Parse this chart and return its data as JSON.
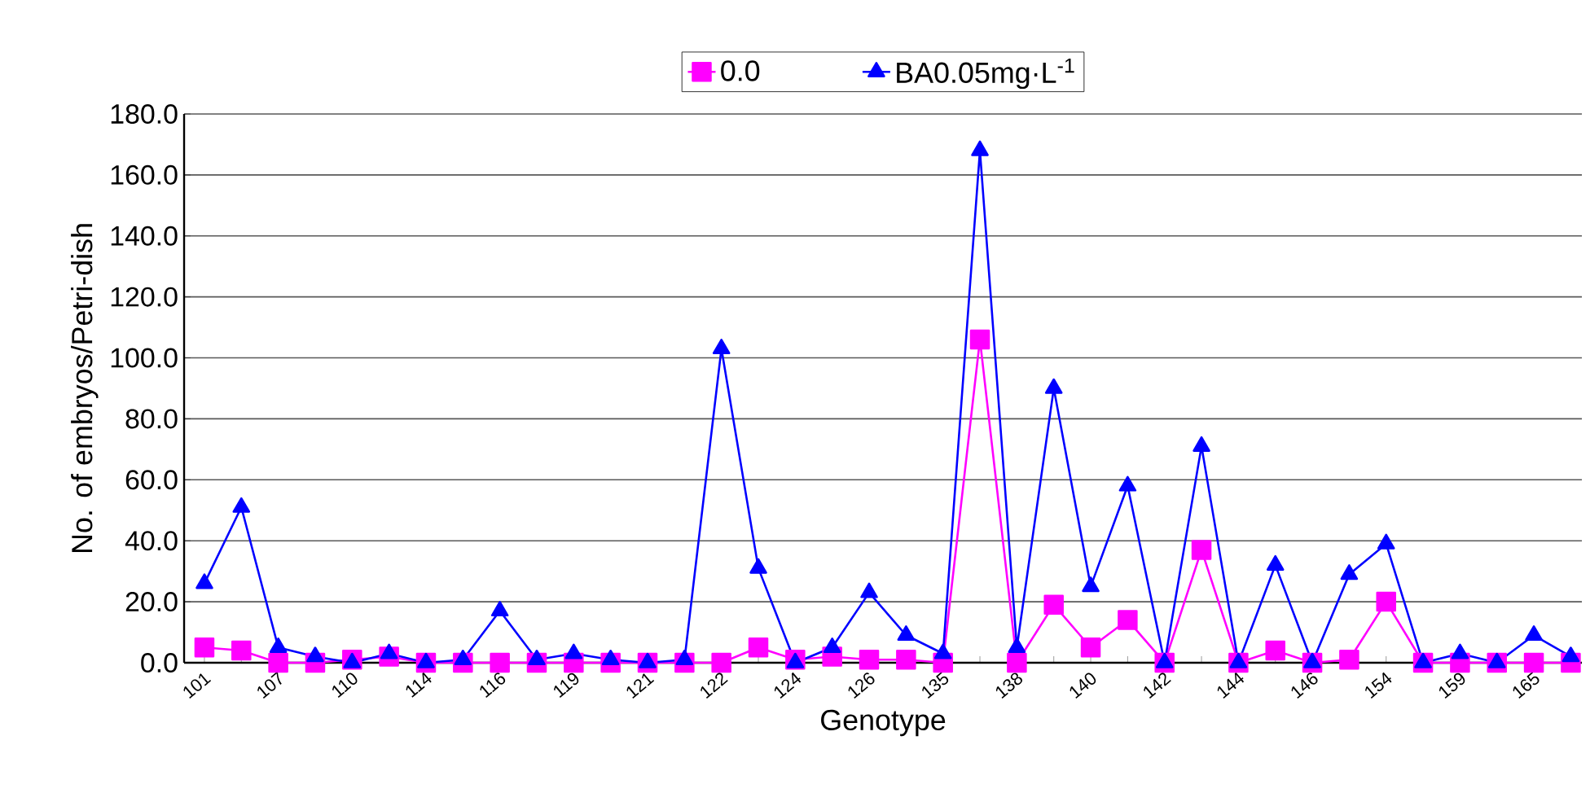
{
  "chart_data": {
    "type": "line",
    "xlabel": "Genotype",
    "ylabel": "No. of embryos/Petri-dish",
    "categories": [
      "101",
      null,
      "107",
      null,
      "110",
      null,
      "114",
      null,
      "116",
      null,
      "119",
      null,
      "121",
      null,
      "122",
      null,
      "124",
      null,
      "126",
      null,
      "135",
      null,
      "138",
      null,
      "140",
      null,
      "142",
      null,
      "144",
      null,
      "146",
      null,
      "154",
      null,
      "159",
      null,
      "165",
      null
    ],
    "series": [
      {
        "name": "0.0",
        "color": "#ff00ff",
        "marker": "square",
        "values": [
          5,
          4,
          0,
          0,
          1,
          2,
          0,
          0,
          0,
          0,
          0,
          0,
          0,
          0,
          0,
          5,
          1,
          2,
          1,
          1,
          0,
          106,
          0,
          19,
          5,
          14,
          0,
          37,
          0,
          4,
          0,
          1,
          20,
          0,
          0,
          0,
          0,
          0
        ]
      },
      {
        "name": "BA0.05mg·L$^{-1}$",
        "color": "#0000ff",
        "marker": "triangle",
        "values": [
          26,
          51,
          5,
          2,
          0,
          3,
          0,
          1,
          17,
          1,
          3,
          1,
          0,
          1,
          103,
          31,
          0,
          5,
          23,
          9,
          3,
          168,
          5,
          90,
          25,
          58,
          0,
          71,
          0,
          32,
          0,
          29,
          39,
          0,
          3,
          0,
          9,
          2
        ]
      }
    ],
    "ylim": [
      0,
      180
    ],
    "yticks": [
      {
        "value": 0,
        "label": "0.0"
      },
      {
        "value": 20,
        "label": "20.0"
      },
      {
        "value": 40,
        "label": "40.0"
      },
      {
        "value": 60,
        "label": "60.0"
      },
      {
        "value": 80,
        "label": "80.0"
      },
      {
        "value": 100,
        "label": "100.0"
      },
      {
        "value": 120,
        "label": "120.0"
      },
      {
        "value": 140,
        "label": "140.0"
      },
      {
        "value": 160,
        "label": "160.0"
      },
      {
        "value": 180,
        "label": "180.0"
      }
    ],
    "grid": "y",
    "legend": "top",
    "line_style": "solid"
  }
}
